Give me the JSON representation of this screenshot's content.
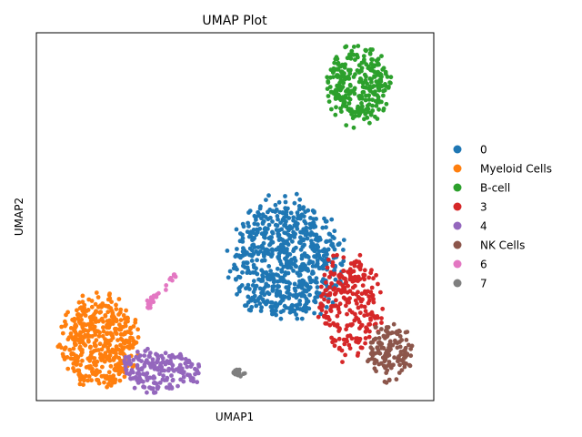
{
  "chart_data": {
    "type": "scatter",
    "title": "UMAP Plot",
    "xlabel": "UMAP1",
    "ylabel": "UMAP2",
    "grid": false,
    "ticks": false,
    "xlim": [
      0,
      100
    ],
    "ylim": [
      0,
      100
    ],
    "legend_position": "right",
    "series": [
      {
        "name": "0",
        "color": "#1f77b4",
        "cluster": {
          "cx": 63,
          "cy": 38,
          "rx": 14.5,
          "ry": 17,
          "n": 700
        }
      },
      {
        "name": "Myeloid Cells",
        "color": "#ff7f0e",
        "cluster": {
          "cx": 16,
          "cy": 16,
          "rx": 10,
          "ry": 13,
          "n": 450
        }
      },
      {
        "name": "B-cell",
        "color": "#2ca02c",
        "cluster": {
          "cx": 81,
          "cy": 86,
          "rx": 8.5,
          "ry": 11,
          "n": 300
        }
      },
      {
        "name": "3",
        "color": "#d62728",
        "cluster": {
          "cx": 79,
          "cy": 26,
          "rx": 8,
          "ry": 15,
          "n": 250
        }
      },
      {
        "name": "4",
        "color": "#9467bd",
        "cluster": {
          "cx": 31,
          "cy": 8,
          "rx": 10,
          "ry": 6,
          "n": 180
        }
      },
      {
        "name": "NK Cells",
        "color": "#8c564b",
        "cluster": {
          "cx": 89,
          "cy": 13,
          "rx": 6,
          "ry": 8,
          "n": 140
        }
      },
      {
        "name": "6",
        "color": "#e377c2",
        "cluster": {
          "cx": 31.5,
          "cy": 30,
          "rx": 4,
          "ry": 5,
          "n": 30
        }
      },
      {
        "name": "7",
        "color": "#7f7f7f",
        "cluster": {
          "cx": 51.5,
          "cy": 7.5,
          "rx": 2,
          "ry": 1.2,
          "n": 15
        }
      }
    ]
  }
}
